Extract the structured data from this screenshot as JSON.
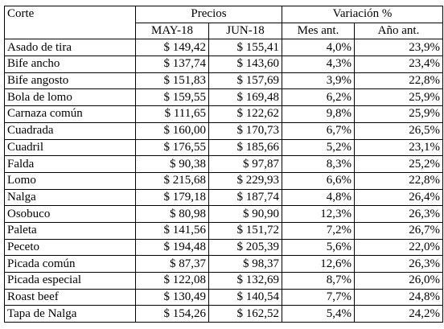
{
  "table": {
    "header": {
      "corte": "Corte",
      "precios": "Precios",
      "variacion": "Variación %",
      "may": "MAY-18",
      "jun": "JUN-18",
      "mes_ant": "Mes ant.",
      "anio_ant": "Año ant."
    },
    "rows": [
      {
        "corte": "Asado de tira",
        "may": "$ 149,42",
        "jun": "$ 155,41",
        "mes": "4,0%",
        "anio": "23,9%"
      },
      {
        "corte": "Bife ancho",
        "may": "$ 137,74",
        "jun": "$ 143,60",
        "mes": "4,3%",
        "anio": "23,4%"
      },
      {
        "corte": "Bife angosto",
        "may": "$ 151,83",
        "jun": "$ 157,69",
        "mes": "3,9%",
        "anio": "22,8%"
      },
      {
        "corte": "Bola de lomo",
        "may": "$ 159,55",
        "jun": "$ 169,48",
        "mes": "6,2%",
        "anio": "25,9%"
      },
      {
        "corte": "Carnaza común",
        "may": "$ 111,65",
        "jun": "$ 122,62",
        "mes": "9,8%",
        "anio": "25,9%"
      },
      {
        "corte": "Cuadrada",
        "may": "$ 160,00",
        "jun": "$ 170,73",
        "mes": "6,7%",
        "anio": "26,5%"
      },
      {
        "corte": "Cuadril",
        "may": "$ 176,55",
        "jun": "$ 185,66",
        "mes": "5,2%",
        "anio": "23,1%"
      },
      {
        "corte": "Falda",
        "may": "$ 90,38",
        "jun": "$ 97,87",
        "mes": "8,3%",
        "anio": "25,2%"
      },
      {
        "corte": "Lomo",
        "may": "$ 215,68",
        "jun": "$ 229,93",
        "mes": "6,6%",
        "anio": "22,8%"
      },
      {
        "corte": "Nalga",
        "may": "$ 179,18",
        "jun": "$ 187,74",
        "mes": "4,8%",
        "anio": "26,4%"
      },
      {
        "corte": "Osobuco",
        "may": "$ 80,98",
        "jun": "$ 90,90",
        "mes": "12,3%",
        "anio": "26,3%"
      },
      {
        "corte": "Paleta",
        "may": "$ 141,56",
        "jun": "$ 151,72",
        "mes": "7,2%",
        "anio": "26,7%"
      },
      {
        "corte": "Peceto",
        "may": "$ 194,48",
        "jun": "$ 205,39",
        "mes": "5,6%",
        "anio": "22,0%"
      },
      {
        "corte": "Picada común",
        "may": "$ 87,37",
        "jun": "$ 98,37",
        "mes": "12,6%",
        "anio": "26,3%"
      },
      {
        "corte": "Picada especial",
        "may": "$ 122,08",
        "jun": "$ 132,69",
        "mes": "8,7%",
        "anio": "26,0%"
      },
      {
        "corte": "Roast beef",
        "may": "$ 130,49",
        "jun": "$ 140,54",
        "mes": "7,7%",
        "anio": "24,8%"
      },
      {
        "corte": "Tapa de Nalga",
        "may": "$ 154,26",
        "jun": "$ 162,52",
        "mes": "5,4%",
        "anio": "24,2%"
      }
    ]
  }
}
